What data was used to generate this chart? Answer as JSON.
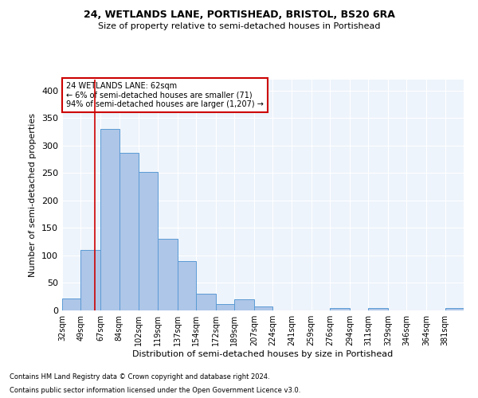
{
  "title1": "24, WETLANDS LANE, PORTISHEAD, BRISTOL, BS20 6RA",
  "title2": "Size of property relative to semi-detached houses in Portishead",
  "xlabel": "Distribution of semi-detached houses by size in Portishead",
  "ylabel": "Number of semi-detached properties",
  "footnote1": "Contains HM Land Registry data © Crown copyright and database right 2024.",
  "footnote2": "Contains public sector information licensed under the Open Government Licence v3.0.",
  "property_size": 62,
  "property_label": "24 WETLANDS LANE: 62sqm",
  "pct_smaller": 6,
  "count_smaller": 71,
  "pct_larger": 94,
  "count_larger": 1207,
  "bar_edges": [
    32,
    49,
    67,
    84,
    102,
    119,
    137,
    154,
    172,
    189,
    207,
    224,
    241,
    259,
    276,
    294,
    311,
    329,
    346,
    364,
    381,
    398
  ],
  "bar_heights": [
    22,
    110,
    330,
    287,
    252,
    130,
    90,
    30,
    11,
    20,
    7,
    0,
    0,
    0,
    4,
    0,
    5,
    0,
    0,
    0,
    5
  ],
  "bar_color": "#AEC6E8",
  "bar_edge_color": "#5B9BD5",
  "vline_x": 62,
  "vline_color": "#CC0000",
  "annotation_box_color": "#CC0000",
  "ylim": [
    0,
    420
  ],
  "yticks": [
    0,
    50,
    100,
    150,
    200,
    250,
    300,
    350,
    400
  ],
  "bg_color": "#EEF4FB",
  "grid_color": "#FFFFFF",
  "tick_label_suffix": "sqm"
}
